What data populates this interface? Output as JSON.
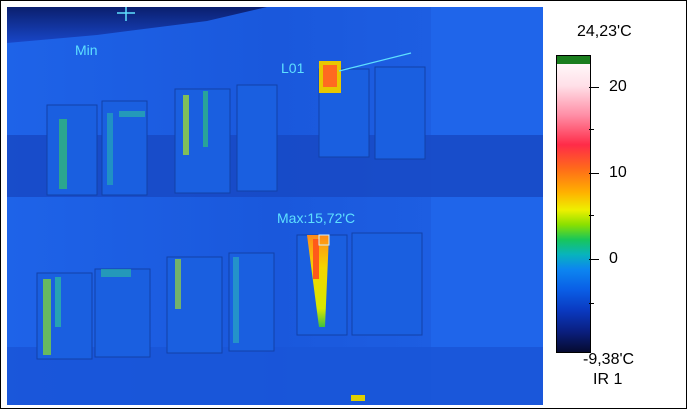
{
  "thermal_image": {
    "min_marker_label": "Min",
    "line_label": "L01",
    "max_marker_label": "Max:15,72'C"
  },
  "scale": {
    "max_temp": "24,23'C",
    "min_temp": "-9,38'C",
    "tick_labels": [
      "20",
      "10",
      "0"
    ],
    "image_id": "IR 1"
  },
  "colors": {
    "overlay_text": "#5ee0ff",
    "background_blue": "#1a55e0"
  }
}
